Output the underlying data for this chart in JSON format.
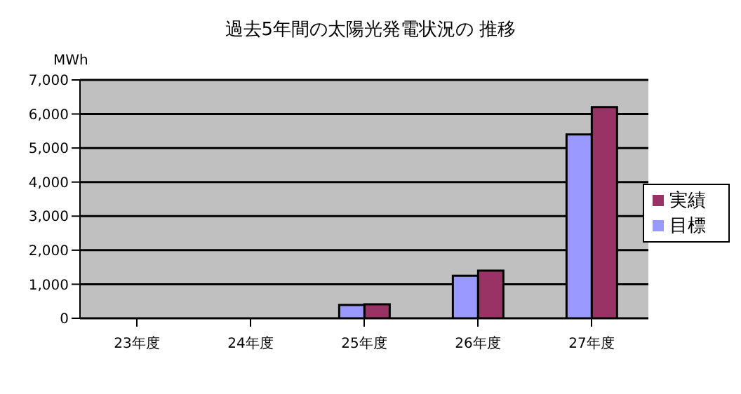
{
  "chart_data": {
    "type": "bar",
    "title": "過去5年間の太陽光発電状況の 推移",
    "ylabel": "MWh",
    "categories": [
      "23年度",
      "24年度",
      "25年度",
      "26年度",
      "27年度"
    ],
    "series": [
      {
        "name": "目標",
        "color": "#9999ff",
        "values": [
          0,
          0,
          390,
          1250,
          5400
        ]
      },
      {
        "name": "実績",
        "color": "#993366",
        "values": [
          0,
          0,
          410,
          1400,
          6200
        ]
      }
    ],
    "ylim": [
      0,
      7000
    ],
    "yticks": [
      {
        "value": 0,
        "label": "0"
      },
      {
        "value": 1000,
        "label": "1,000"
      },
      {
        "value": 2000,
        "label": "2,000"
      },
      {
        "value": 3000,
        "label": "3,000"
      },
      {
        "value": 4000,
        "label": "4,000"
      },
      {
        "value": 5000,
        "label": "5,000"
      },
      {
        "value": 6000,
        "label": "6,000"
      },
      {
        "value": 7000,
        "label": "7,000"
      }
    ],
    "grid": "y",
    "legend": "right"
  }
}
